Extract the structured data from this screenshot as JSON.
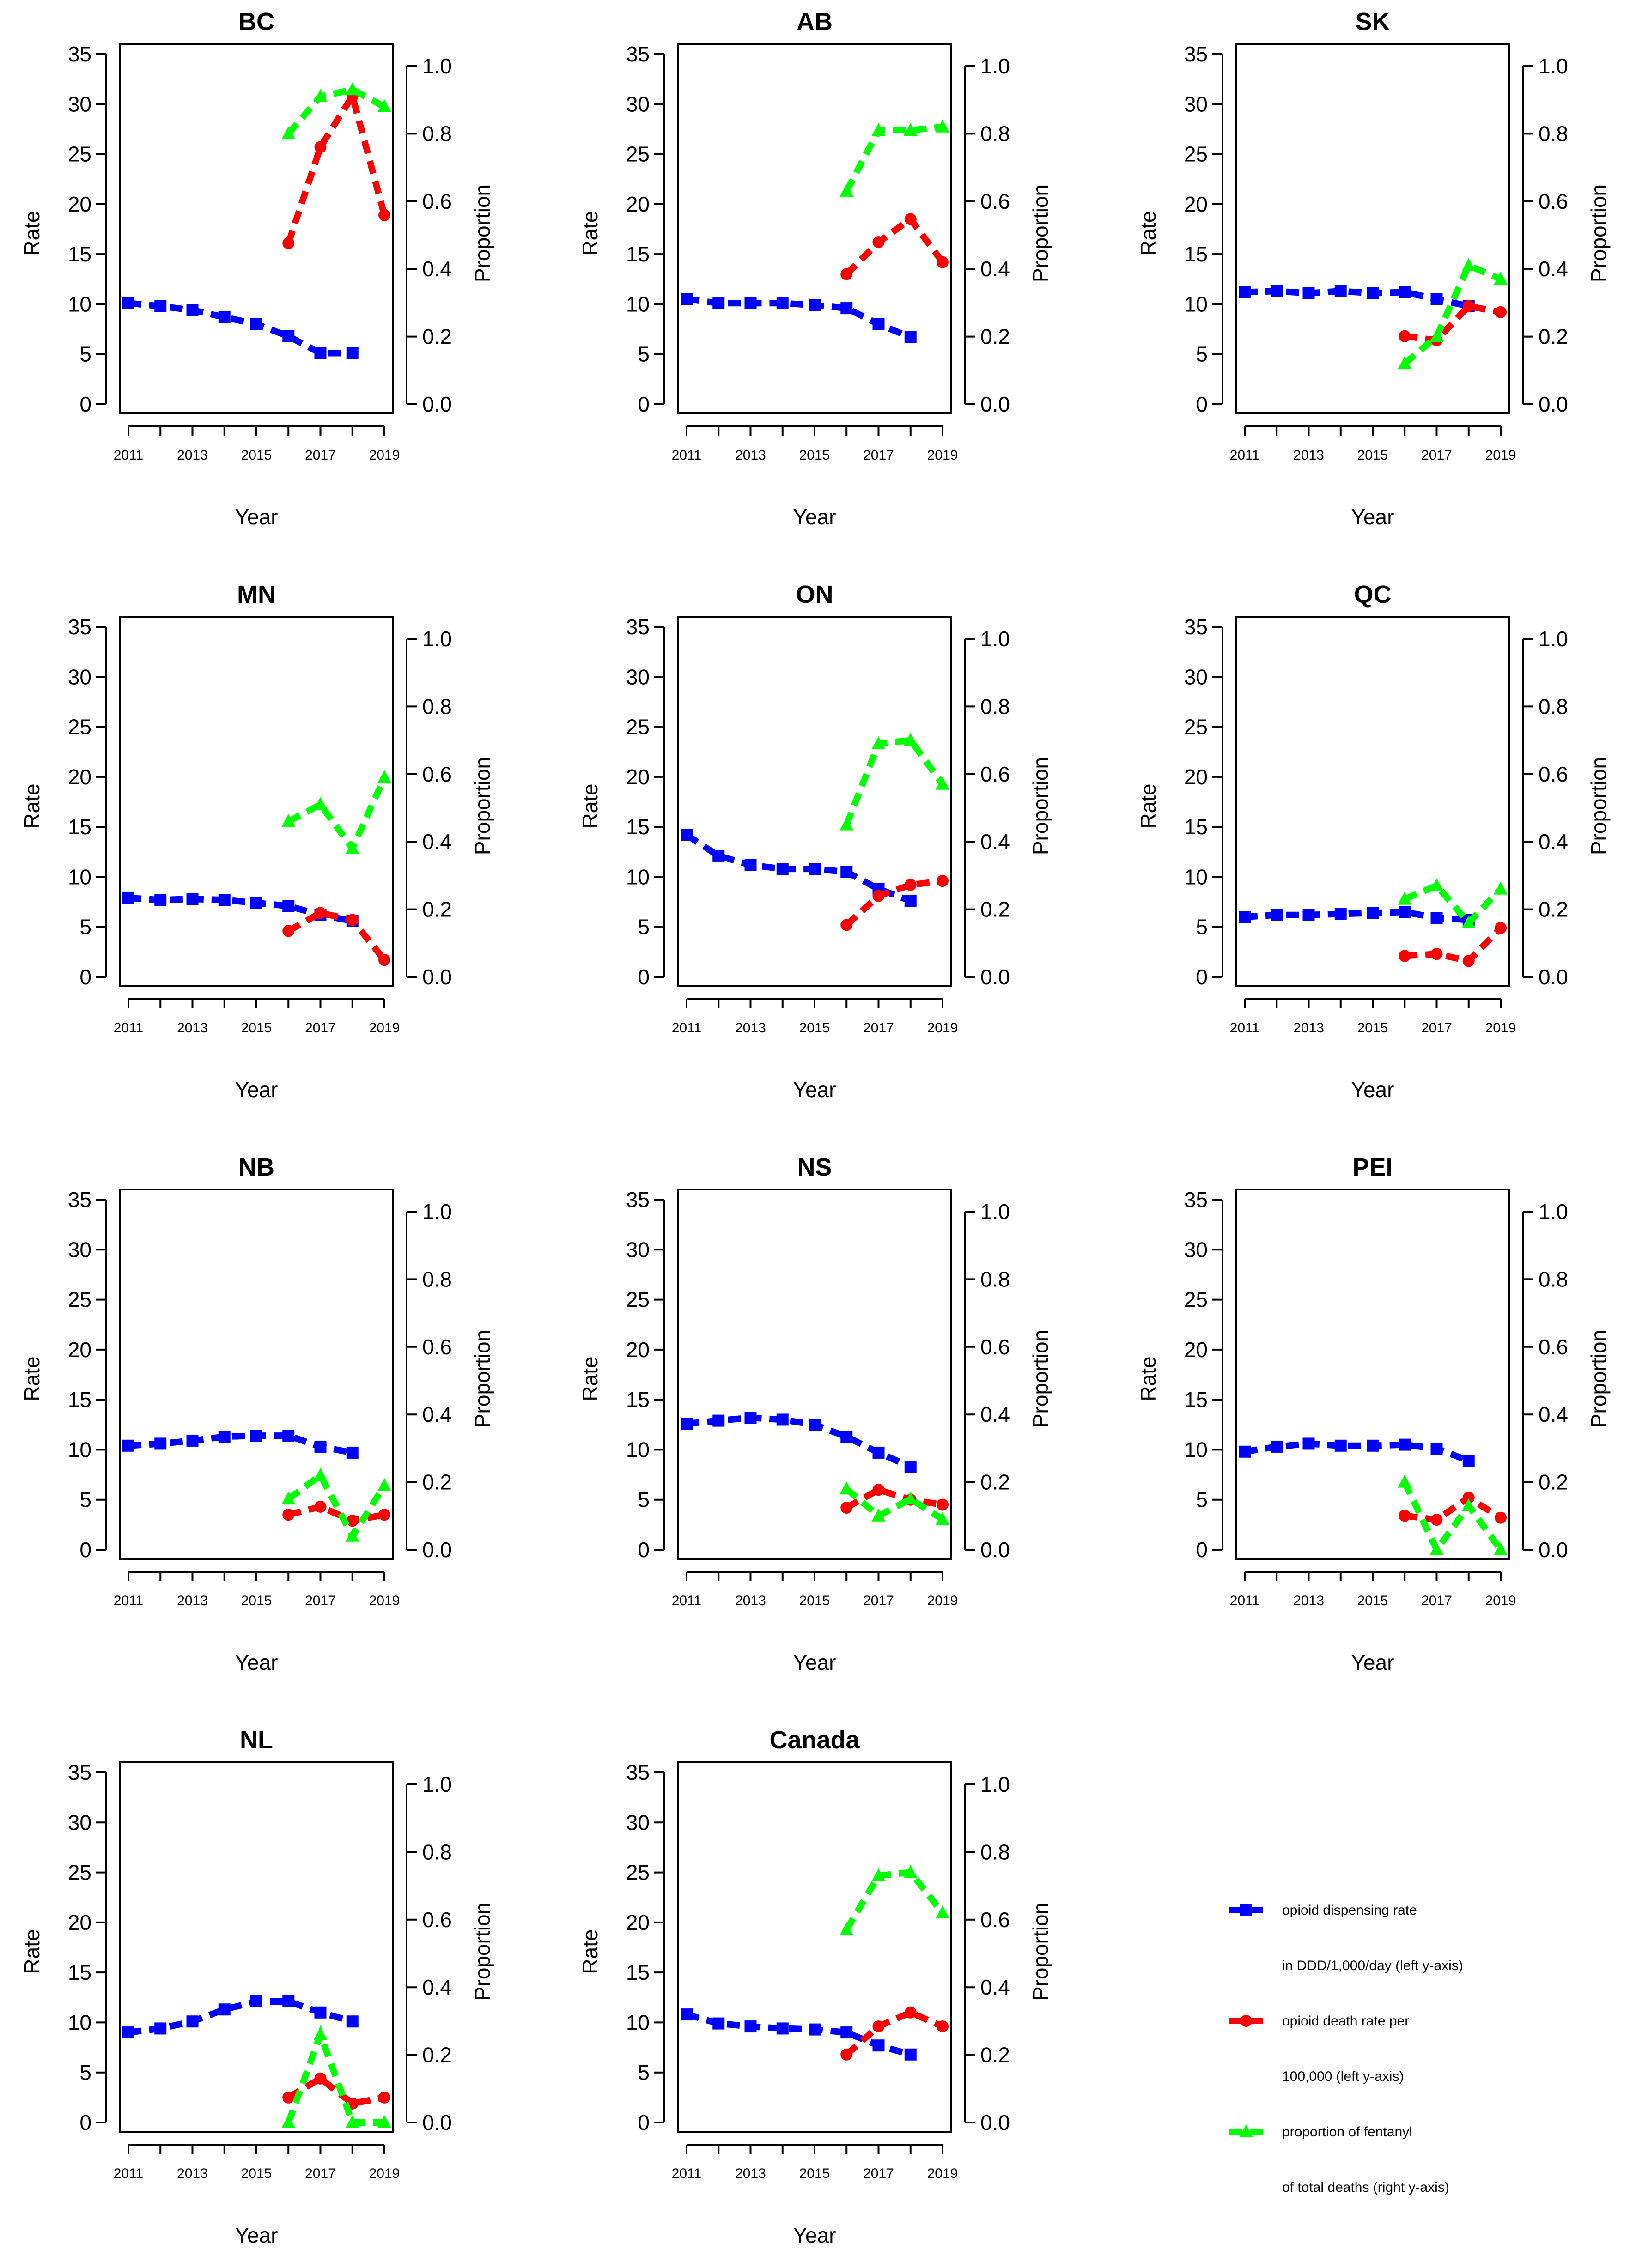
{
  "chart_data": [
    {
      "type": "line",
      "title": "BC",
      "xlabel": "Year",
      "ylabel": "Rate",
      "y2label": "Proportion",
      "x": [
        2011,
        2012,
        2013,
        2014,
        2015,
        2016,
        2017,
        2018,
        2019
      ],
      "xticks": [
        "2011",
        "2013",
        "2015",
        "2017",
        "2019"
      ],
      "yticks": [
        "0",
        "5",
        "10",
        "15",
        "20",
        "25",
        "30",
        "35"
      ],
      "y2ticks": [
        "0.0",
        "0.2",
        "0.4",
        "0.6",
        "0.8",
        "1.0"
      ],
      "ylim": [
        0,
        35
      ],
      "y2lim": [
        0,
        1.0
      ],
      "series": [
        {
          "name": "opioid dispensing rate",
          "axis": "left",
          "values": [
            10.1,
            9.8,
            9.4,
            8.7,
            8.0,
            6.8,
            5.1,
            5.1,
            null
          ]
        },
        {
          "name": "opioid death rate",
          "axis": "left",
          "values": [
            null,
            null,
            null,
            null,
            null,
            16.1,
            25.7,
            30.8,
            18.9
          ]
        },
        {
          "name": "proportion of fentanyl",
          "axis": "right",
          "values": [
            null,
            null,
            null,
            null,
            null,
            0.8,
            0.91,
            0.93,
            0.88
          ]
        }
      ]
    },
    {
      "type": "line",
      "title": "AB",
      "xlabel": "Year",
      "ylabel": "Rate",
      "y2label": "Proportion",
      "x": [
        2011,
        2012,
        2013,
        2014,
        2015,
        2016,
        2017,
        2018,
        2019
      ],
      "xticks": [
        "2011",
        "2013",
        "2015",
        "2017",
        "2019"
      ],
      "yticks": [
        "0",
        "5",
        "10",
        "15",
        "20",
        "25",
        "30",
        "35"
      ],
      "y2ticks": [
        "0.0",
        "0.2",
        "0.4",
        "0.6",
        "0.8",
        "1.0"
      ],
      "ylim": [
        0,
        35
      ],
      "y2lim": [
        0,
        1.0
      ],
      "series": [
        {
          "name": "opioid dispensing rate",
          "axis": "left",
          "values": [
            10.5,
            10.1,
            10.1,
            10.1,
            9.9,
            9.6,
            8.0,
            6.7,
            null
          ]
        },
        {
          "name": "opioid death rate",
          "axis": "left",
          "values": [
            null,
            null,
            null,
            null,
            null,
            13.0,
            16.2,
            18.5,
            14.2
          ]
        },
        {
          "name": "proportion of fentanyl",
          "axis": "right",
          "values": [
            null,
            null,
            null,
            null,
            null,
            0.63,
            0.81,
            0.81,
            0.82
          ]
        }
      ]
    },
    {
      "type": "line",
      "title": "SK",
      "xlabel": "Year",
      "ylabel": "Rate",
      "y2label": "Proportion",
      "x": [
        2011,
        2012,
        2013,
        2014,
        2015,
        2016,
        2017,
        2018,
        2019
      ],
      "xticks": [
        "2011",
        "2013",
        "2015",
        "2017",
        "2019"
      ],
      "yticks": [
        "0",
        "5",
        "10",
        "15",
        "20",
        "25",
        "30",
        "35"
      ],
      "y2ticks": [
        "0.0",
        "0.2",
        "0.4",
        "0.6",
        "0.8",
        "1.0"
      ],
      "ylim": [
        0,
        35
      ],
      "y2lim": [
        0,
        1.0
      ],
      "series": [
        {
          "name": "opioid dispensing rate",
          "axis": "left",
          "values": [
            11.2,
            11.3,
            11.1,
            11.3,
            11.1,
            11.2,
            10.5,
            9.8,
            null
          ]
        },
        {
          "name": "opioid death rate",
          "axis": "left",
          "values": [
            null,
            null,
            null,
            null,
            null,
            6.8,
            6.4,
            9.8,
            9.2
          ]
        },
        {
          "name": "proportion of fentanyl",
          "axis": "right",
          "values": [
            null,
            null,
            null,
            null,
            null,
            0.12,
            0.2,
            0.41,
            0.37
          ]
        }
      ]
    },
    {
      "type": "line",
      "title": "MN",
      "xlabel": "Year",
      "ylabel": "Rate",
      "y2label": "Proportion",
      "x": [
        2011,
        2012,
        2013,
        2014,
        2015,
        2016,
        2017,
        2018,
        2019
      ],
      "xticks": [
        "2011",
        "2013",
        "2015",
        "2017",
        "2019"
      ],
      "yticks": [
        "0",
        "5",
        "10",
        "15",
        "20",
        "25",
        "30",
        "35"
      ],
      "y2ticks": [
        "0.0",
        "0.2",
        "0.4",
        "0.6",
        "0.8",
        "1.0"
      ],
      "ylim": [
        0,
        35
      ],
      "y2lim": [
        0,
        1.0
      ],
      "series": [
        {
          "name": "opioid dispensing rate",
          "axis": "left",
          "values": [
            7.9,
            7.7,
            7.8,
            7.7,
            7.4,
            7.1,
            6.2,
            5.6,
            null
          ]
        },
        {
          "name": "opioid death rate",
          "axis": "left",
          "values": [
            null,
            null,
            null,
            null,
            null,
            4.6,
            6.4,
            5.7,
            1.7
          ]
        },
        {
          "name": "proportion of fentanyl",
          "axis": "right",
          "values": [
            null,
            null,
            null,
            null,
            null,
            0.46,
            0.51,
            0.38,
            0.59
          ]
        }
      ]
    },
    {
      "type": "line",
      "title": "ON",
      "xlabel": "Year",
      "ylabel": "Rate",
      "y2label": "Proportion",
      "x": [
        2011,
        2012,
        2013,
        2014,
        2015,
        2016,
        2017,
        2018,
        2019
      ],
      "xticks": [
        "2011",
        "2013",
        "2015",
        "2017",
        "2019"
      ],
      "yticks": [
        "0",
        "5",
        "10",
        "15",
        "20",
        "25",
        "30",
        "35"
      ],
      "y2ticks": [
        "0.0",
        "0.2",
        "0.4",
        "0.6",
        "0.8",
        "1.0"
      ],
      "ylim": [
        0,
        35
      ],
      "y2lim": [
        0,
        1.0
      ],
      "series": [
        {
          "name": "opioid dispensing rate",
          "axis": "left",
          "values": [
            14.2,
            12.1,
            11.2,
            10.8,
            10.8,
            10.5,
            8.8,
            7.6,
            null
          ]
        },
        {
          "name": "opioid death rate",
          "axis": "left",
          "values": [
            null,
            null,
            null,
            null,
            null,
            5.2,
            8.1,
            9.2,
            9.6
          ]
        },
        {
          "name": "proportion of fentanyl",
          "axis": "right",
          "values": [
            null,
            null,
            null,
            null,
            null,
            0.45,
            0.69,
            0.7,
            0.57
          ]
        }
      ]
    },
    {
      "type": "line",
      "title": "QC",
      "xlabel": "Year",
      "ylabel": "Rate",
      "y2label": "Proportion",
      "x": [
        2011,
        2012,
        2013,
        2014,
        2015,
        2016,
        2017,
        2018,
        2019
      ],
      "xticks": [
        "2011",
        "2013",
        "2015",
        "2017",
        "2019"
      ],
      "yticks": [
        "0",
        "5",
        "10",
        "15",
        "20",
        "25",
        "30",
        "35"
      ],
      "y2ticks": [
        "0.0",
        "0.2",
        "0.4",
        "0.6",
        "0.8",
        "1.0"
      ],
      "ylim": [
        0,
        35
      ],
      "y2lim": [
        0,
        1.0
      ],
      "series": [
        {
          "name": "opioid dispensing rate",
          "axis": "left",
          "values": [
            6.0,
            6.2,
            6.2,
            6.3,
            6.4,
            6.5,
            5.9,
            5.7,
            null
          ]
        },
        {
          "name": "opioid death rate",
          "axis": "left",
          "values": [
            null,
            null,
            null,
            null,
            null,
            2.1,
            2.3,
            1.6,
            4.9
          ]
        },
        {
          "name": "proportion of fentanyl",
          "axis": "right",
          "values": [
            null,
            null,
            null,
            null,
            null,
            0.23,
            0.27,
            0.16,
            0.26
          ]
        }
      ]
    },
    {
      "type": "line",
      "title": "NB",
      "xlabel": "Year",
      "ylabel": "Rate",
      "y2label": "Proportion",
      "x": [
        2011,
        2012,
        2013,
        2014,
        2015,
        2016,
        2017,
        2018,
        2019
      ],
      "xticks": [
        "2011",
        "2013",
        "2015",
        "2017",
        "2019"
      ],
      "yticks": [
        "0",
        "5",
        "10",
        "15",
        "20",
        "25",
        "30",
        "35"
      ],
      "y2ticks": [
        "0.0",
        "0.2",
        "0.4",
        "0.6",
        "0.8",
        "1.0"
      ],
      "ylim": [
        0,
        35
      ],
      "y2lim": [
        0,
        1.0
      ],
      "series": [
        {
          "name": "opioid dispensing rate",
          "axis": "left",
          "values": [
            10.4,
            10.6,
            10.9,
            11.3,
            11.4,
            11.4,
            10.3,
            9.7,
            null
          ]
        },
        {
          "name": "opioid death rate",
          "axis": "left",
          "values": [
            null,
            null,
            null,
            null,
            null,
            3.5,
            4.3,
            2.9,
            3.5
          ]
        },
        {
          "name": "proportion of fentanyl",
          "axis": "right",
          "values": [
            null,
            null,
            null,
            null,
            null,
            0.15,
            0.22,
            0.04,
            0.19
          ]
        }
      ]
    },
    {
      "type": "line",
      "title": "NS",
      "xlabel": "Year",
      "ylabel": "Rate",
      "y2label": "Proportion",
      "x": [
        2011,
        2012,
        2013,
        2014,
        2015,
        2016,
        2017,
        2018,
        2019
      ],
      "xticks": [
        "2011",
        "2013",
        "2015",
        "2017",
        "2019"
      ],
      "yticks": [
        "0",
        "5",
        "10",
        "15",
        "20",
        "25",
        "30",
        "35"
      ],
      "y2ticks": [
        "0.0",
        "0.2",
        "0.4",
        "0.6",
        "0.8",
        "1.0"
      ],
      "ylim": [
        0,
        35
      ],
      "y2lim": [
        0,
        1.0
      ],
      "series": [
        {
          "name": "opioid dispensing rate",
          "axis": "left",
          "values": [
            12.6,
            12.9,
            13.2,
            13.0,
            12.5,
            11.3,
            9.7,
            8.3,
            null
          ]
        },
        {
          "name": "opioid death rate",
          "axis": "left",
          "values": [
            null,
            null,
            null,
            null,
            null,
            4.2,
            6.0,
            5.0,
            4.5
          ]
        },
        {
          "name": "proportion of fentanyl",
          "axis": "right",
          "values": [
            null,
            null,
            null,
            null,
            null,
            0.18,
            0.1,
            0.15,
            0.09
          ]
        }
      ]
    },
    {
      "type": "line",
      "title": "PEI",
      "xlabel": "Year",
      "ylabel": "Rate",
      "y2label": "Proportion",
      "x": [
        2011,
        2012,
        2013,
        2014,
        2015,
        2016,
        2017,
        2018,
        2019
      ],
      "xticks": [
        "2011",
        "2013",
        "2015",
        "2017",
        "2019"
      ],
      "yticks": [
        "0",
        "5",
        "10",
        "15",
        "20",
        "25",
        "30",
        "35"
      ],
      "y2ticks": [
        "0.0",
        "0.2",
        "0.4",
        "0.6",
        "0.8",
        "1.0"
      ],
      "ylim": [
        0,
        35
      ],
      "y2lim": [
        0,
        1.0
      ],
      "series": [
        {
          "name": "opioid dispensing rate",
          "axis": "left",
          "values": [
            9.8,
            10.3,
            10.6,
            10.4,
            10.4,
            10.5,
            10.1,
            8.9,
            null
          ]
        },
        {
          "name": "opioid death rate",
          "axis": "left",
          "values": [
            null,
            null,
            null,
            null,
            null,
            3.4,
            3.0,
            5.2,
            3.2
          ]
        },
        {
          "name": "proportion of fentanyl",
          "axis": "right",
          "values": [
            null,
            null,
            null,
            null,
            null,
            0.2,
            0.0,
            0.13,
            0.0
          ]
        }
      ]
    },
    {
      "type": "line",
      "title": "NL",
      "xlabel": "Year",
      "ylabel": "Rate",
      "y2label": "Proportion",
      "x": [
        2011,
        2012,
        2013,
        2014,
        2015,
        2016,
        2017,
        2018,
        2019
      ],
      "xticks": [
        "2011",
        "2013",
        "2015",
        "2017",
        "2019"
      ],
      "yticks": [
        "0",
        "5",
        "10",
        "15",
        "20",
        "25",
        "30",
        "35"
      ],
      "y2ticks": [
        "0.0",
        "0.2",
        "0.4",
        "0.6",
        "0.8",
        "1.0"
      ],
      "ylim": [
        0,
        35
      ],
      "y2lim": [
        0,
        1.0
      ],
      "series": [
        {
          "name": "opioid dispensing rate",
          "axis": "left",
          "values": [
            9.0,
            9.4,
            10.1,
            11.3,
            12.1,
            12.1,
            11.0,
            10.1,
            null
          ]
        },
        {
          "name": "opioid death rate",
          "axis": "left",
          "values": [
            null,
            null,
            null,
            null,
            null,
            2.5,
            4.4,
            1.9,
            2.5
          ]
        },
        {
          "name": "proportion of fentanyl",
          "axis": "right",
          "values": [
            null,
            null,
            null,
            null,
            null,
            0.0,
            0.26,
            0.0,
            0.0
          ]
        }
      ]
    },
    {
      "type": "line",
      "title": "Canada",
      "xlabel": "Year",
      "ylabel": "Rate",
      "y2label": "Proportion",
      "x": [
        2011,
        2012,
        2013,
        2014,
        2015,
        2016,
        2017,
        2018,
        2019
      ],
      "xticks": [
        "2011",
        "2013",
        "2015",
        "2017",
        "2019"
      ],
      "yticks": [
        "0",
        "5",
        "10",
        "15",
        "20",
        "25",
        "30",
        "35"
      ],
      "y2ticks": [
        "0.0",
        "0.2",
        "0.4",
        "0.6",
        "0.8",
        "1.0"
      ],
      "ylim": [
        0,
        35
      ],
      "y2lim": [
        0,
        1.0
      ],
      "series": [
        {
          "name": "opioid dispensing rate",
          "axis": "left",
          "values": [
            10.8,
            9.9,
            9.6,
            9.4,
            9.3,
            9.0,
            7.7,
            6.8,
            null
          ]
        },
        {
          "name": "opioid death rate",
          "axis": "left",
          "values": [
            null,
            null,
            null,
            null,
            null,
            6.8,
            9.6,
            11.0,
            9.6
          ]
        },
        {
          "name": "proportion of fentanyl",
          "axis": "right",
          "values": [
            null,
            null,
            null,
            null,
            null,
            0.57,
            0.73,
            0.74,
            0.62
          ]
        }
      ]
    }
  ],
  "legend": {
    "position": "bottom-right",
    "items": [
      {
        "key": "dispensing",
        "color": "#0000ff",
        "marker": "square",
        "line1": "opioid dispensing rate",
        "line2": "in DDD/1,000/day (left y-axis)"
      },
      {
        "key": "death",
        "color": "#ff0000",
        "marker": "circle",
        "line1": "opioid death rate per",
        "line2": "100,000 (left y-axis)"
      },
      {
        "key": "fentanyl",
        "color": "#00ff00",
        "marker": "triangle",
        "line1": "proportion of fentanyl",
        "line2": "of total deaths (right y-axis)"
      }
    ]
  },
  "colors": {
    "dispensing": "#0000ff",
    "death": "#ff0000",
    "fentanyl": "#00ff00"
  }
}
